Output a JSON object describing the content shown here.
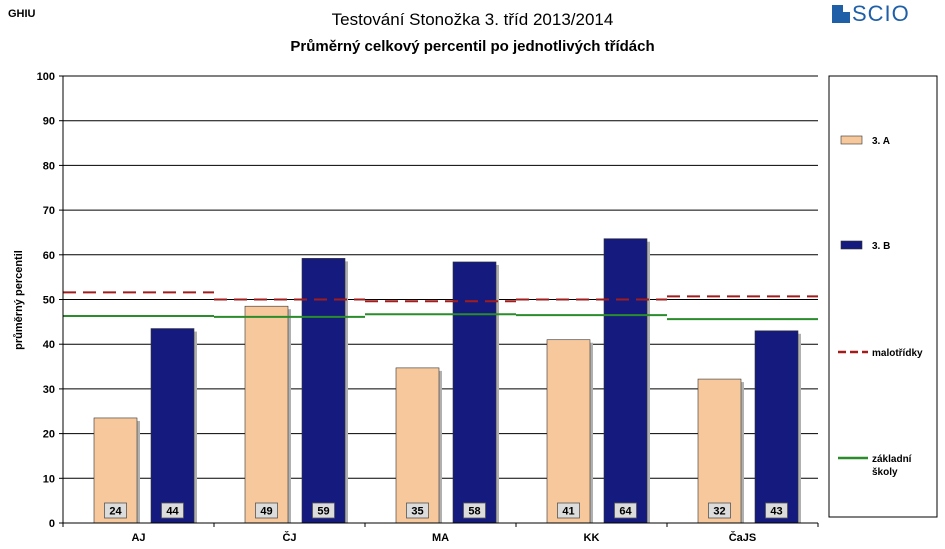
{
  "header": {
    "code": "GHIU",
    "title": "Testování Stonožka 3. tříd 2013/2014",
    "subtitle": "Průměrný celkový percentil po jednotlivých třídách",
    "logo_text": "SCIO"
  },
  "colors": {
    "bar_3A": "#f6c89c",
    "bar_3B": "#141a7e",
    "line_malotridky": "#a31c1c",
    "line_zakladni": "#2a8c2a"
  },
  "chart_data": {
    "type": "bar",
    "title": "Průměrný celkový percentil po jednotlivých třídách",
    "xlabel": "",
    "ylabel": "průměrný percentil",
    "ylim": [
      0,
      100
    ],
    "yticks": [
      0,
      10,
      20,
      30,
      40,
      50,
      60,
      70,
      80,
      90,
      100
    ],
    "grid": true,
    "legend_position": "right",
    "categories": [
      "AJ",
      "ČJ",
      "MA",
      "KK",
      "ČaJS"
    ],
    "series": [
      {
        "name": "3. A",
        "kind": "bar",
        "values": [
          23.5,
          48.5,
          34.7,
          41,
          32.2
        ],
        "labels": [
          "24",
          "49",
          "35",
          "41",
          "32"
        ]
      },
      {
        "name": "3. B",
        "kind": "bar",
        "values": [
          43.5,
          59.2,
          58.4,
          63.6,
          43
        ]
      },
      {
        "name": "malotřídky",
        "kind": "line",
        "style": "dashed",
        "values": [
          51.6,
          50,
          49.6,
          50,
          50.7
        ]
      },
      {
        "name": "základní školy",
        "kind": "line",
        "style": "solid",
        "values": [
          46.3,
          46.1,
          46.7,
          46.5,
          45.6
        ]
      }
    ],
    "bar_value_labels": {
      "3. A": [
        "24",
        "49",
        "35",
        "41",
        "32"
      ],
      "3. B": [
        "44",
        "59",
        "58",
        "64",
        "43"
      ]
    },
    "legend": [
      {
        "name": "3. A"
      },
      {
        "name": "3. B"
      },
      {
        "name": "malotřídky"
      },
      {
        "name": "základní",
        "line2": "školy"
      }
    ]
  }
}
